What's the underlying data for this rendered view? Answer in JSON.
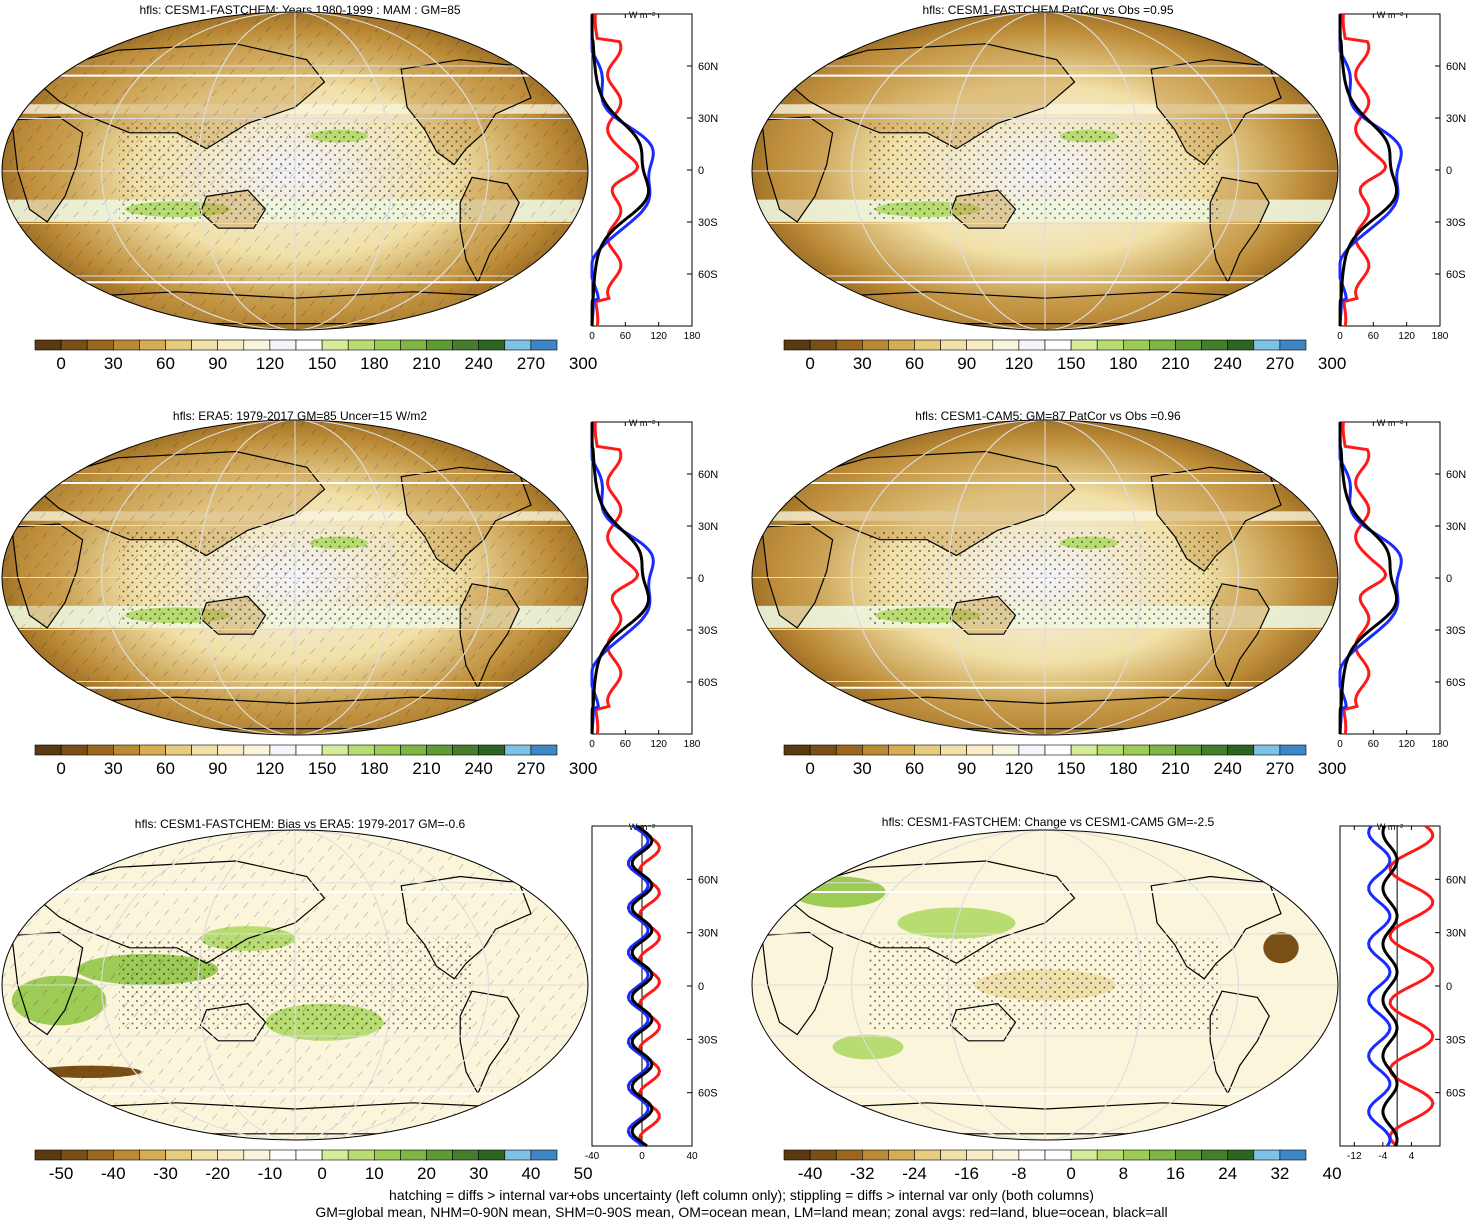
{
  "footer": {
    "line1": "hatching = diffs > internal var+obs uncertainty (left column only); stippling = diffs > internal var only (both columns)",
    "line2": "GM=global mean, NHM=0-90N mean, SHM=0-90S mean, OM=ocean mean, LM=land mean; zonal avgs: red=land, blue=ocean, black=all"
  },
  "zonal_units": "W m⁻²",
  "lat_labels": [
    "60N",
    "30N",
    "0",
    "30S",
    "60S"
  ],
  "abs_colorbar": {
    "labels": [
      "0",
      "30",
      "60",
      "90",
      "120",
      "150",
      "180",
      "210",
      "240",
      "270",
      "300"
    ],
    "colors": [
      "#5a3a10",
      "#7a4f16",
      "#9a6620",
      "#bb8a35",
      "#d6ad55",
      "#e7cc7f",
      "#f1e0a7",
      "#f7ecc6",
      "#f9f4dc",
      "#f4f4fa",
      "#ffffff",
      "#d6ec9a",
      "#b9dc72",
      "#9ccb56",
      "#7fb544",
      "#5f9a35",
      "#447e2c",
      "#2e6422",
      "#7ec3e6",
      "#3f86c6"
    ]
  },
  "bias_colorbar": {
    "labels": [
      "-50",
      "-40",
      "-30",
      "-20",
      "-10",
      "0",
      "10",
      "20",
      "30",
      "40",
      "50"
    ],
    "colors": [
      "#5a3a10",
      "#7a4f16",
      "#9a6620",
      "#bb8a35",
      "#d6ad55",
      "#e7cc7f",
      "#f1e0a7",
      "#f7ecc6",
      "#f9f4dc",
      "#ffffff",
      "#ffffff",
      "#d6ec9a",
      "#b9dc72",
      "#9ccb56",
      "#7fb544",
      "#5f9a35",
      "#447e2c",
      "#2e6422",
      "#7ec3e6",
      "#3f86c6"
    ]
  },
  "change_colorbar": {
    "labels": [
      "-40",
      "-32",
      "-24",
      "-16",
      "-8",
      "0",
      "8",
      "16",
      "24",
      "32",
      "40"
    ],
    "colors": [
      "#5a3a10",
      "#7a4f16",
      "#9a6620",
      "#bb8a35",
      "#d6ad55",
      "#e7cc7f",
      "#f1e0a7",
      "#f7ecc6",
      "#f9f4dc",
      "#ffffff",
      "#ffffff",
      "#d6ec9a",
      "#b9dc72",
      "#9ccb56",
      "#7fb544",
      "#5f9a35",
      "#447e2c",
      "#2e6422",
      "#7ec3e6",
      "#3f86c6"
    ]
  },
  "panels": [
    {
      "title": "hfls: CESM1-FASTCHEM: Years 1980-1999 : MAM : GM=85",
      "kind": "abs",
      "hatched": true,
      "stippled": true,
      "zonal_ticks": [
        "0",
        "60",
        "120",
        "180"
      ],
      "zonal_range": [
        0,
        180
      ]
    },
    {
      "title": "hfls: CESM1-FASTCHEM PatCor vs Obs =0.95",
      "kind": "abs",
      "hatched": false,
      "stippled": true,
      "zonal_ticks": [
        "0",
        "60",
        "120",
        "180"
      ],
      "zonal_range": [
        0,
        180
      ]
    },
    {
      "title": "hfls: ERA5: 1979-2017 GM=85 Uncer=15 W/m2",
      "kind": "abs",
      "hatched": true,
      "stippled": true,
      "zonal_ticks": [
        "0",
        "60",
        "120",
        "180"
      ],
      "zonal_range": [
        0,
        180
      ]
    },
    {
      "title": "hfls: CESM1-CAM5: GM=87 PatCor vs Obs =0.96",
      "kind": "abs",
      "hatched": false,
      "stippled": true,
      "zonal_ticks": [
        "0",
        "60",
        "120",
        "180"
      ],
      "zonal_range": [
        0,
        180
      ]
    },
    {
      "title": "hfls: CESM1-FASTCHEM: Bias vs ERA5: 1979-2017 GM=-0.6",
      "kind": "bias",
      "hatched": true,
      "stippled": true,
      "zonal_ticks": [
        "-40",
        "0",
        "40"
      ],
      "zonal_range": [
        -40,
        40
      ]
    },
    {
      "title": "hfls: CESM1-FASTCHEM: Change vs CESM1-CAM5 GM=-2.5",
      "kind": "change",
      "hatched": false,
      "stippled": true,
      "zonal_ticks": [
        "-12",
        "-4",
        "4"
      ],
      "zonal_range": [
        -16,
        12
      ]
    }
  ]
}
